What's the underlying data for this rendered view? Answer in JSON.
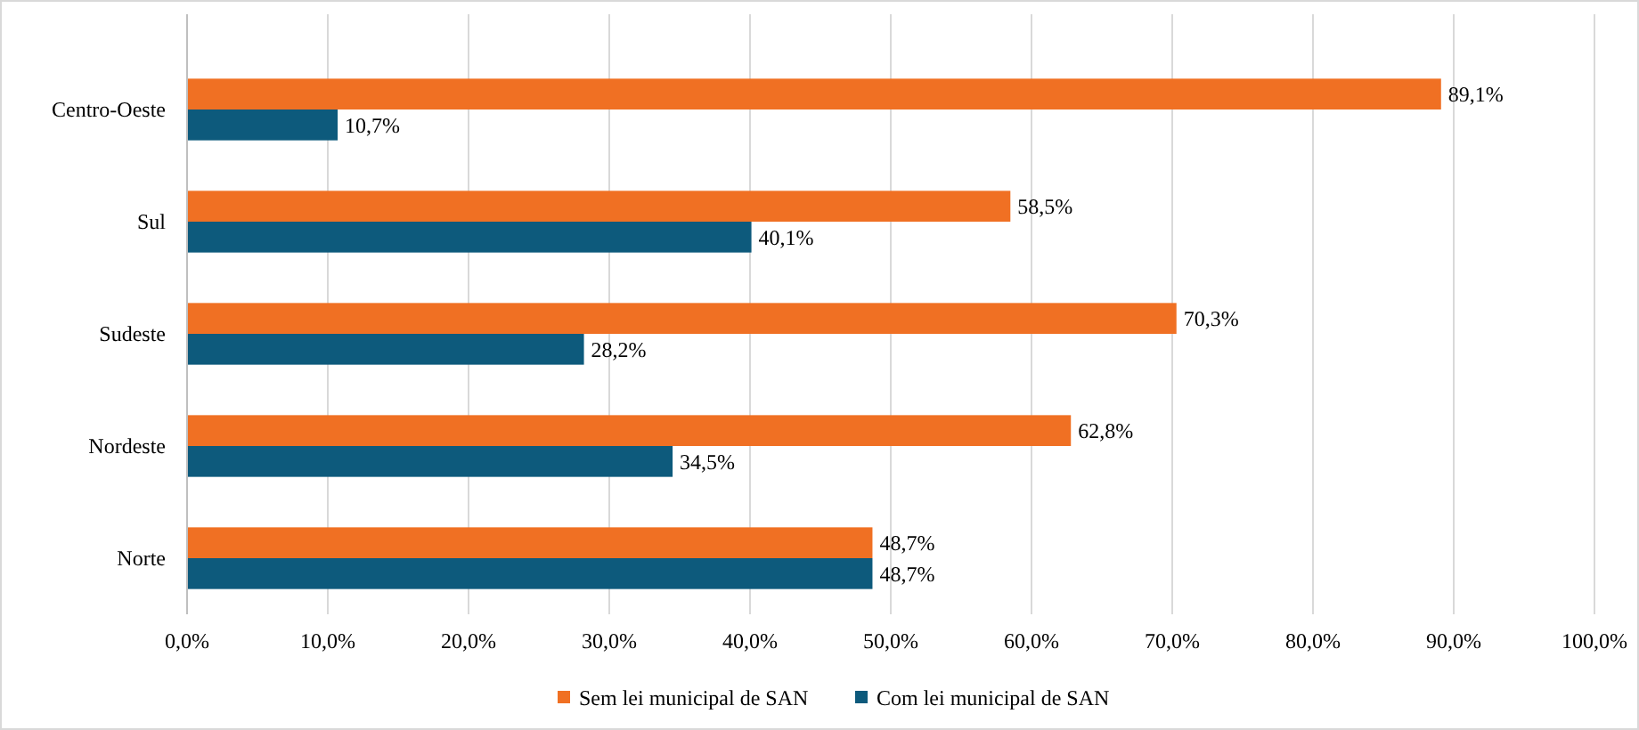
{
  "chart_data": {
    "type": "bar",
    "orientation": "horizontal",
    "categories": [
      "Centro-Oeste",
      "Sul",
      "Sudeste",
      "Nordeste",
      "Norte"
    ],
    "series": [
      {
        "name": "Sem lei municipal de SAN",
        "color": "#f07023",
        "values": [
          89.1,
          58.5,
          70.3,
          62.8,
          48.7
        ],
        "value_labels": [
          "89,1%",
          "58,5%",
          "70,3%",
          "62,8%",
          "48,7%"
        ]
      },
      {
        "name": "Com lei municipal de SAN",
        "color": "#0d5a7c",
        "values": [
          10.7,
          40.1,
          28.2,
          34.5,
          48.7
        ],
        "value_labels": [
          "10,7%",
          "40,1%",
          "28,2%",
          "34,5%",
          "48,7%"
        ]
      }
    ],
    "xlim": [
      0,
      100
    ],
    "xticks": [
      {
        "value": 0,
        "label": "0,0%"
      },
      {
        "value": 10,
        "label": "10,0%"
      },
      {
        "value": 20,
        "label": "20,0%"
      },
      {
        "value": 30,
        "label": "30,0%"
      },
      {
        "value": 40,
        "label": "40,0%"
      },
      {
        "value": 50,
        "label": "50,0%"
      },
      {
        "value": 60,
        "label": "60,0%"
      },
      {
        "value": 70,
        "label": "70,0%"
      },
      {
        "value": 80,
        "label": "80,0%"
      },
      {
        "value": 90,
        "label": "90,0%"
      },
      {
        "value": 100,
        "label": "100,0%"
      }
    ],
    "grid": "x",
    "legend": "bottom"
  }
}
